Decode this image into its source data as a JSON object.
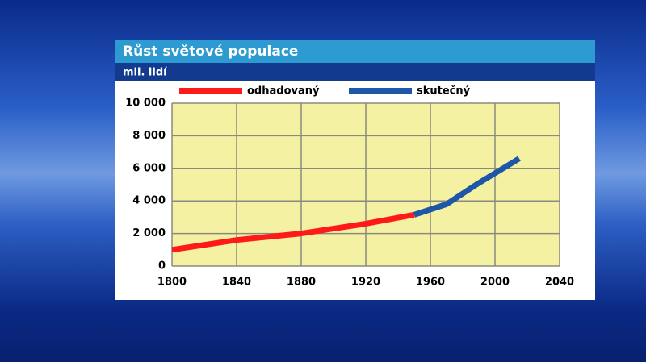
{
  "chart_data": {
    "type": "line",
    "title": "Růst světové populace",
    "y_label": "mil. lidí",
    "xlim": [
      1800,
      2040
    ],
    "xticks": [
      1800,
      1840,
      1880,
      1920,
      1960,
      2000,
      2040
    ],
    "ylim": [
      0,
      10000
    ],
    "yticks": [
      0,
      {
        "value": 2000,
        "label": "2 000"
      },
      {
        "value": 4000,
        "label": "4 000"
      },
      {
        "value": 6000,
        "label": "6 000"
      },
      {
        "value": 8000,
        "label": "8 000"
      },
      {
        "value": 10000,
        "label": "10 000"
      }
    ],
    "grid": true,
    "series": [
      {
        "name": "odhadovaný",
        "color": "#ff1a1a",
        "x": [
          1800,
          1840,
          1880,
          1920,
          1950
        ],
        "values": [
          1000,
          1600,
          2000,
          2600,
          3150
        ]
      },
      {
        "name": "skutečný",
        "color": "#1e56a8",
        "x": [
          1950,
          1970,
          1990,
          2015
        ],
        "values": [
          3150,
          3800,
          5100,
          6600
        ]
      }
    ]
  }
}
